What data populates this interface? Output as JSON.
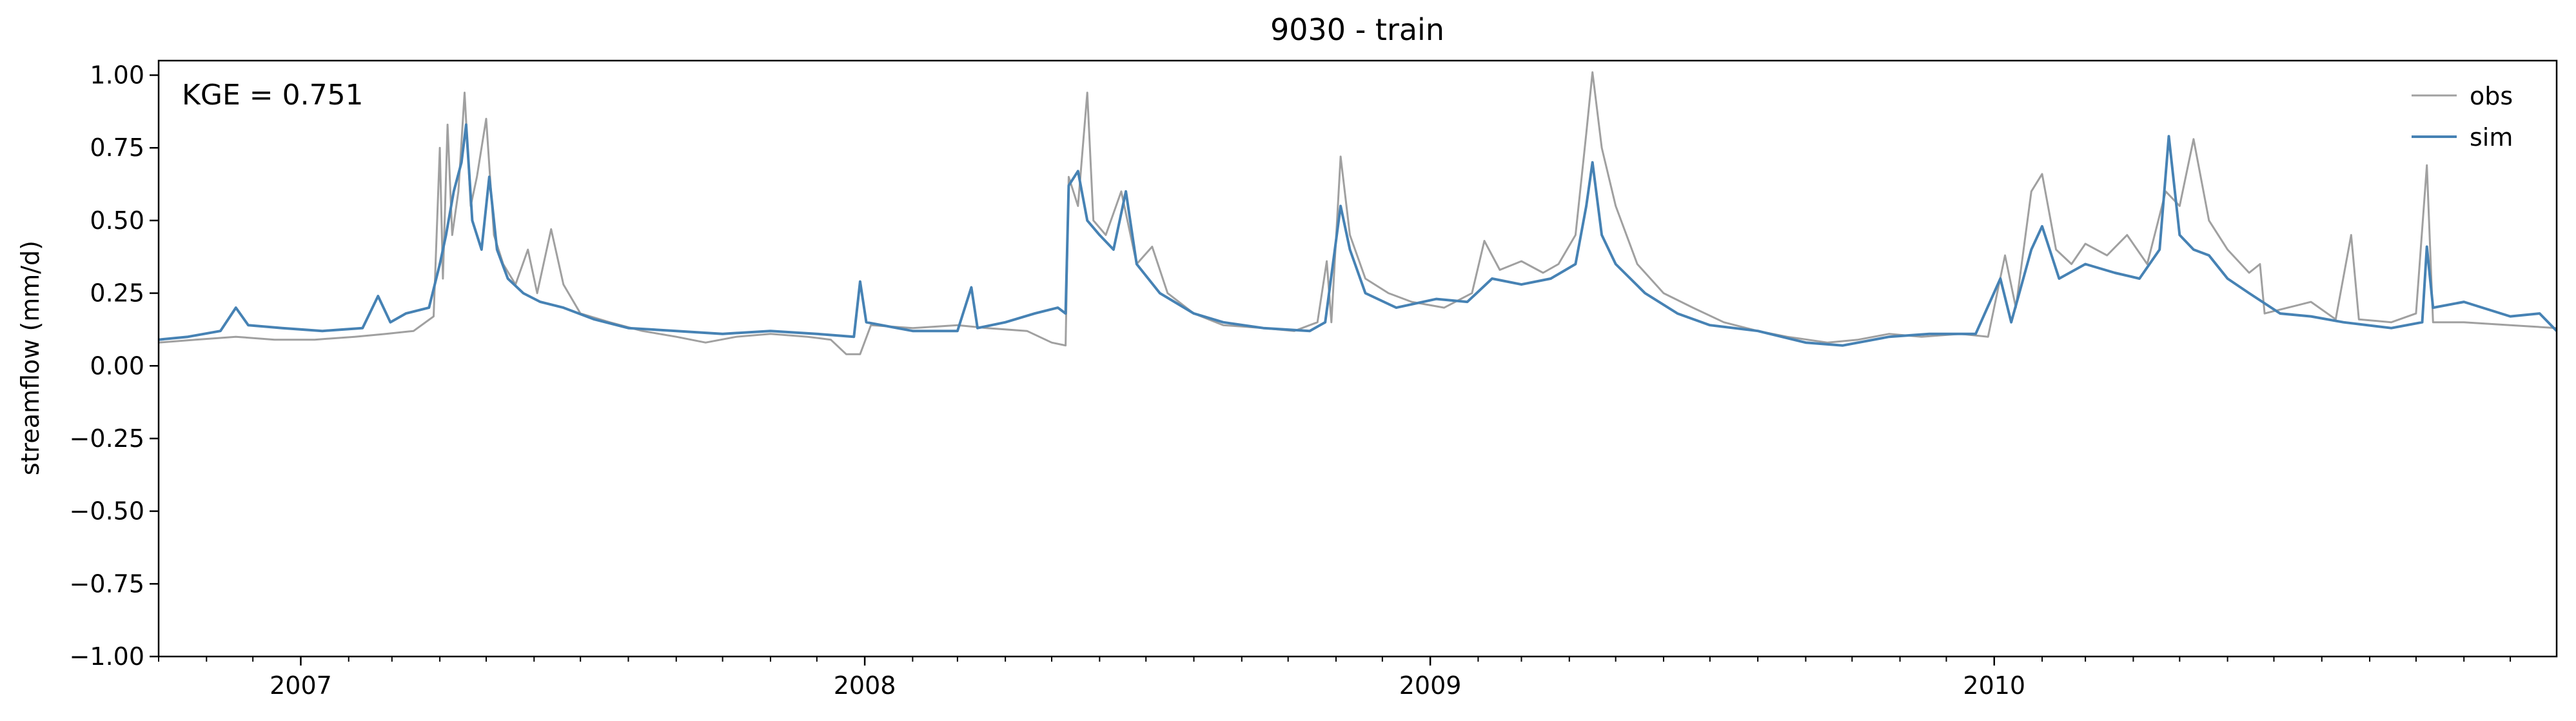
{
  "chart_data": {
    "type": "line",
    "title": "9030 - train",
    "ylabel": "streamflow (mm/d)",
    "xlabel": "",
    "annotation": "KGE = 0.751",
    "xlim": [
      "2006-10-01",
      "2010-12-31"
    ],
    "ylim": [
      -1.0,
      1.05
    ],
    "y_ticks": [
      -1.0,
      -0.75,
      -0.5,
      -0.25,
      0.0,
      0.25,
      0.5,
      0.75,
      1.0
    ],
    "y_tick_labels": [
      "−1.00",
      "−0.75",
      "−0.50",
      "−0.25",
      "0.00",
      "0.25",
      "0.50",
      "0.75",
      "1.00"
    ],
    "x_ticks": [
      "2007-01-01",
      "2008-01-01",
      "2009-01-01",
      "2010-01-01"
    ],
    "x_tick_labels": [
      "2007",
      "2008",
      "2009",
      "2010"
    ],
    "grid": false,
    "legend_position": "top-right",
    "series": [
      {
        "name": "obs",
        "color": "#a0a0a0",
        "points": [
          [
            "2006-10-01",
            0.08
          ],
          [
            "2006-10-25",
            0.09
          ],
          [
            "2006-11-20",
            0.1
          ],
          [
            "2006-12-15",
            0.09
          ],
          [
            "2007-01-10",
            0.09
          ],
          [
            "2007-02-05",
            0.1
          ],
          [
            "2007-02-25",
            0.11
          ],
          [
            "2007-03-15",
            0.12
          ],
          [
            "2007-03-28",
            0.17
          ],
          [
            "2007-04-01",
            0.75
          ],
          [
            "2007-04-03",
            0.3
          ],
          [
            "2007-04-06",
            0.83
          ],
          [
            "2007-04-09",
            0.45
          ],
          [
            "2007-04-13",
            0.6
          ],
          [
            "2007-04-17",
            0.94
          ],
          [
            "2007-04-21",
            0.55
          ],
          [
            "2007-04-25",
            0.65
          ],
          [
            "2007-05-01",
            0.85
          ],
          [
            "2007-05-06",
            0.45
          ],
          [
            "2007-05-12",
            0.35
          ],
          [
            "2007-05-20",
            0.28
          ],
          [
            "2007-05-28",
            0.4
          ],
          [
            "2007-06-03",
            0.25
          ],
          [
            "2007-06-12",
            0.47
          ],
          [
            "2007-06-20",
            0.28
          ],
          [
            "2007-07-01",
            0.18
          ],
          [
            "2007-07-20",
            0.15
          ],
          [
            "2007-08-10",
            0.12
          ],
          [
            "2007-09-01",
            0.1
          ],
          [
            "2007-09-20",
            0.08
          ],
          [
            "2007-10-10",
            0.1
          ],
          [
            "2007-11-01",
            0.11
          ],
          [
            "2007-11-25",
            0.1
          ],
          [
            "2007-12-10",
            0.09
          ],
          [
            "2007-12-20",
            0.04
          ],
          [
            "2007-12-29",
            0.04
          ],
          [
            "2008-01-05",
            0.14
          ],
          [
            "2008-02-01",
            0.13
          ],
          [
            "2008-03-01",
            0.14
          ],
          [
            "2008-03-20",
            0.13
          ],
          [
            "2008-04-15",
            0.12
          ],
          [
            "2008-05-01",
            0.08
          ],
          [
            "2008-05-10",
            0.07
          ],
          [
            "2008-05-12",
            0.65
          ],
          [
            "2008-05-18",
            0.55
          ],
          [
            "2008-05-24",
            0.94
          ],
          [
            "2008-05-28",
            0.5
          ],
          [
            "2008-06-05",
            0.45
          ],
          [
            "2008-06-15",
            0.6
          ],
          [
            "2008-06-25",
            0.35
          ],
          [
            "2008-07-05",
            0.41
          ],
          [
            "2008-07-15",
            0.25
          ],
          [
            "2008-08-01",
            0.18
          ],
          [
            "2008-08-20",
            0.14
          ],
          [
            "2008-09-15",
            0.13
          ],
          [
            "2008-10-05",
            0.12
          ],
          [
            "2008-10-20",
            0.15
          ],
          [
            "2008-10-26",
            0.36
          ],
          [
            "2008-10-29",
            0.15
          ],
          [
            "2008-11-04",
            0.72
          ],
          [
            "2008-11-10",
            0.45
          ],
          [
            "2008-11-20",
            0.3
          ],
          [
            "2008-12-05",
            0.25
          ],
          [
            "2008-12-20",
            0.22
          ],
          [
            "2009-01-10",
            0.2
          ],
          [
            "2009-01-28",
            0.25
          ],
          [
            "2009-02-05",
            0.43
          ],
          [
            "2009-02-15",
            0.33
          ],
          [
            "2009-03-01",
            0.36
          ],
          [
            "2009-03-15",
            0.32
          ],
          [
            "2009-03-25",
            0.35
          ],
          [
            "2009-04-05",
            0.45
          ],
          [
            "2009-04-12",
            0.8
          ],
          [
            "2009-04-16",
            1.01
          ],
          [
            "2009-04-22",
            0.75
          ],
          [
            "2009-05-01",
            0.55
          ],
          [
            "2009-05-15",
            0.35
          ],
          [
            "2009-06-01",
            0.25
          ],
          [
            "2009-06-20",
            0.2
          ],
          [
            "2009-07-10",
            0.15
          ],
          [
            "2009-08-01",
            0.12
          ],
          [
            "2009-08-20",
            0.1
          ],
          [
            "2009-09-15",
            0.08
          ],
          [
            "2009-10-05",
            0.09
          ],
          [
            "2009-10-25",
            0.11
          ],
          [
            "2009-11-15",
            0.1
          ],
          [
            "2009-12-10",
            0.11
          ],
          [
            "2009-12-28",
            0.1
          ],
          [
            "2010-01-08",
            0.38
          ],
          [
            "2010-01-15",
            0.2
          ],
          [
            "2010-01-25",
            0.6
          ],
          [
            "2010-02-01",
            0.66
          ],
          [
            "2010-02-10",
            0.4
          ],
          [
            "2010-02-20",
            0.35
          ],
          [
            "2010-03-01",
            0.42
          ],
          [
            "2010-03-15",
            0.38
          ],
          [
            "2010-03-28",
            0.45
          ],
          [
            "2010-04-10",
            0.35
          ],
          [
            "2010-04-22",
            0.6
          ],
          [
            "2010-05-01",
            0.55
          ],
          [
            "2010-05-10",
            0.78
          ],
          [
            "2010-05-20",
            0.5
          ],
          [
            "2010-06-01",
            0.4
          ],
          [
            "2010-06-15",
            0.32
          ],
          [
            "2010-06-22",
            0.35
          ],
          [
            "2010-06-25",
            0.18
          ],
          [
            "2010-07-10",
            0.2
          ],
          [
            "2010-07-25",
            0.22
          ],
          [
            "2010-08-10",
            0.16
          ],
          [
            "2010-08-20",
            0.45
          ],
          [
            "2010-08-25",
            0.16
          ],
          [
            "2010-09-15",
            0.15
          ],
          [
            "2010-10-01",
            0.18
          ],
          [
            "2010-10-08",
            0.69
          ],
          [
            "2010-10-12",
            0.15
          ],
          [
            "2010-11-01",
            0.15
          ],
          [
            "2010-12-01",
            0.14
          ],
          [
            "2010-12-31",
            0.13
          ]
        ]
      },
      {
        "name": "sim",
        "color": "#4682b4",
        "points": [
          [
            "2006-10-01",
            0.09
          ],
          [
            "2006-10-20",
            0.1
          ],
          [
            "2006-11-10",
            0.12
          ],
          [
            "2006-11-20",
            0.2
          ],
          [
            "2006-11-28",
            0.14
          ],
          [
            "2006-12-20",
            0.13
          ],
          [
            "2007-01-15",
            0.12
          ],
          [
            "2007-02-10",
            0.13
          ],
          [
            "2007-02-20",
            0.24
          ],
          [
            "2007-02-28",
            0.15
          ],
          [
            "2007-03-10",
            0.18
          ],
          [
            "2007-03-25",
            0.2
          ],
          [
            "2007-04-01",
            0.35
          ],
          [
            "2007-04-05",
            0.45
          ],
          [
            "2007-04-10",
            0.6
          ],
          [
            "2007-04-15",
            0.7
          ],
          [
            "2007-04-18",
            0.83
          ],
          [
            "2007-04-22",
            0.5
          ],
          [
            "2007-04-28",
            0.4
          ],
          [
            "2007-05-03",
            0.65
          ],
          [
            "2007-05-08",
            0.4
          ],
          [
            "2007-05-15",
            0.3
          ],
          [
            "2007-05-25",
            0.25
          ],
          [
            "2007-06-05",
            0.22
          ],
          [
            "2007-06-20",
            0.2
          ],
          [
            "2007-07-10",
            0.16
          ],
          [
            "2007-08-01",
            0.13
          ],
          [
            "2007-09-01",
            0.12
          ],
          [
            "2007-10-01",
            0.11
          ],
          [
            "2007-11-01",
            0.12
          ],
          [
            "2007-12-01",
            0.11
          ],
          [
            "2007-12-25",
            0.1
          ],
          [
            "2007-12-29",
            0.29
          ],
          [
            "2008-01-02",
            0.15
          ],
          [
            "2008-02-01",
            0.12
          ],
          [
            "2008-03-01",
            0.12
          ],
          [
            "2008-03-10",
            0.27
          ],
          [
            "2008-03-14",
            0.13
          ],
          [
            "2008-04-01",
            0.15
          ],
          [
            "2008-04-20",
            0.18
          ],
          [
            "2008-05-05",
            0.2
          ],
          [
            "2008-05-10",
            0.18
          ],
          [
            "2008-05-12",
            0.62
          ],
          [
            "2008-05-18",
            0.67
          ],
          [
            "2008-05-24",
            0.5
          ],
          [
            "2008-06-01",
            0.45
          ],
          [
            "2008-06-10",
            0.4
          ],
          [
            "2008-06-18",
            0.6
          ],
          [
            "2008-06-25",
            0.35
          ],
          [
            "2008-07-10",
            0.25
          ],
          [
            "2008-08-01",
            0.18
          ],
          [
            "2008-08-20",
            0.15
          ],
          [
            "2008-09-15",
            0.13
          ],
          [
            "2008-10-15",
            0.12
          ],
          [
            "2008-10-25",
            0.15
          ],
          [
            "2008-11-04",
            0.55
          ],
          [
            "2008-11-10",
            0.4
          ],
          [
            "2008-11-20",
            0.25
          ],
          [
            "2008-12-10",
            0.2
          ],
          [
            "2009-01-05",
            0.23
          ],
          [
            "2009-01-25",
            0.22
          ],
          [
            "2009-02-10",
            0.3
          ],
          [
            "2009-03-01",
            0.28
          ],
          [
            "2009-03-20",
            0.3
          ],
          [
            "2009-04-05",
            0.35
          ],
          [
            "2009-04-12",
            0.55
          ],
          [
            "2009-04-16",
            0.7
          ],
          [
            "2009-04-22",
            0.45
          ],
          [
            "2009-05-01",
            0.35
          ],
          [
            "2009-05-20",
            0.25
          ],
          [
            "2009-06-10",
            0.18
          ],
          [
            "2009-07-01",
            0.14
          ],
          [
            "2009-08-01",
            0.12
          ],
          [
            "2009-09-01",
            0.08
          ],
          [
            "2009-09-25",
            0.07
          ],
          [
            "2009-10-25",
            0.1
          ],
          [
            "2009-11-20",
            0.11
          ],
          [
            "2009-12-20",
            0.11
          ],
          [
            "2010-01-05",
            0.3
          ],
          [
            "2010-01-12",
            0.15
          ],
          [
            "2010-01-25",
            0.4
          ],
          [
            "2010-02-01",
            0.48
          ],
          [
            "2010-02-12",
            0.3
          ],
          [
            "2010-03-01",
            0.35
          ],
          [
            "2010-03-20",
            0.32
          ],
          [
            "2010-04-05",
            0.3
          ],
          [
            "2010-04-18",
            0.4
          ],
          [
            "2010-04-24",
            0.79
          ],
          [
            "2010-05-01",
            0.45
          ],
          [
            "2010-05-10",
            0.4
          ],
          [
            "2010-05-20",
            0.38
          ],
          [
            "2010-06-01",
            0.3
          ],
          [
            "2010-06-15",
            0.25
          ],
          [
            "2010-07-05",
            0.18
          ],
          [
            "2010-07-25",
            0.17
          ],
          [
            "2010-08-15",
            0.15
          ],
          [
            "2010-09-15",
            0.13
          ],
          [
            "2010-10-05",
            0.15
          ],
          [
            "2010-10-08",
            0.41
          ],
          [
            "2010-10-12",
            0.2
          ],
          [
            "2010-11-01",
            0.22
          ],
          [
            "2010-12-01",
            0.17
          ],
          [
            "2010-12-20",
            0.18
          ],
          [
            "2010-12-31",
            0.12
          ]
        ]
      }
    ]
  }
}
